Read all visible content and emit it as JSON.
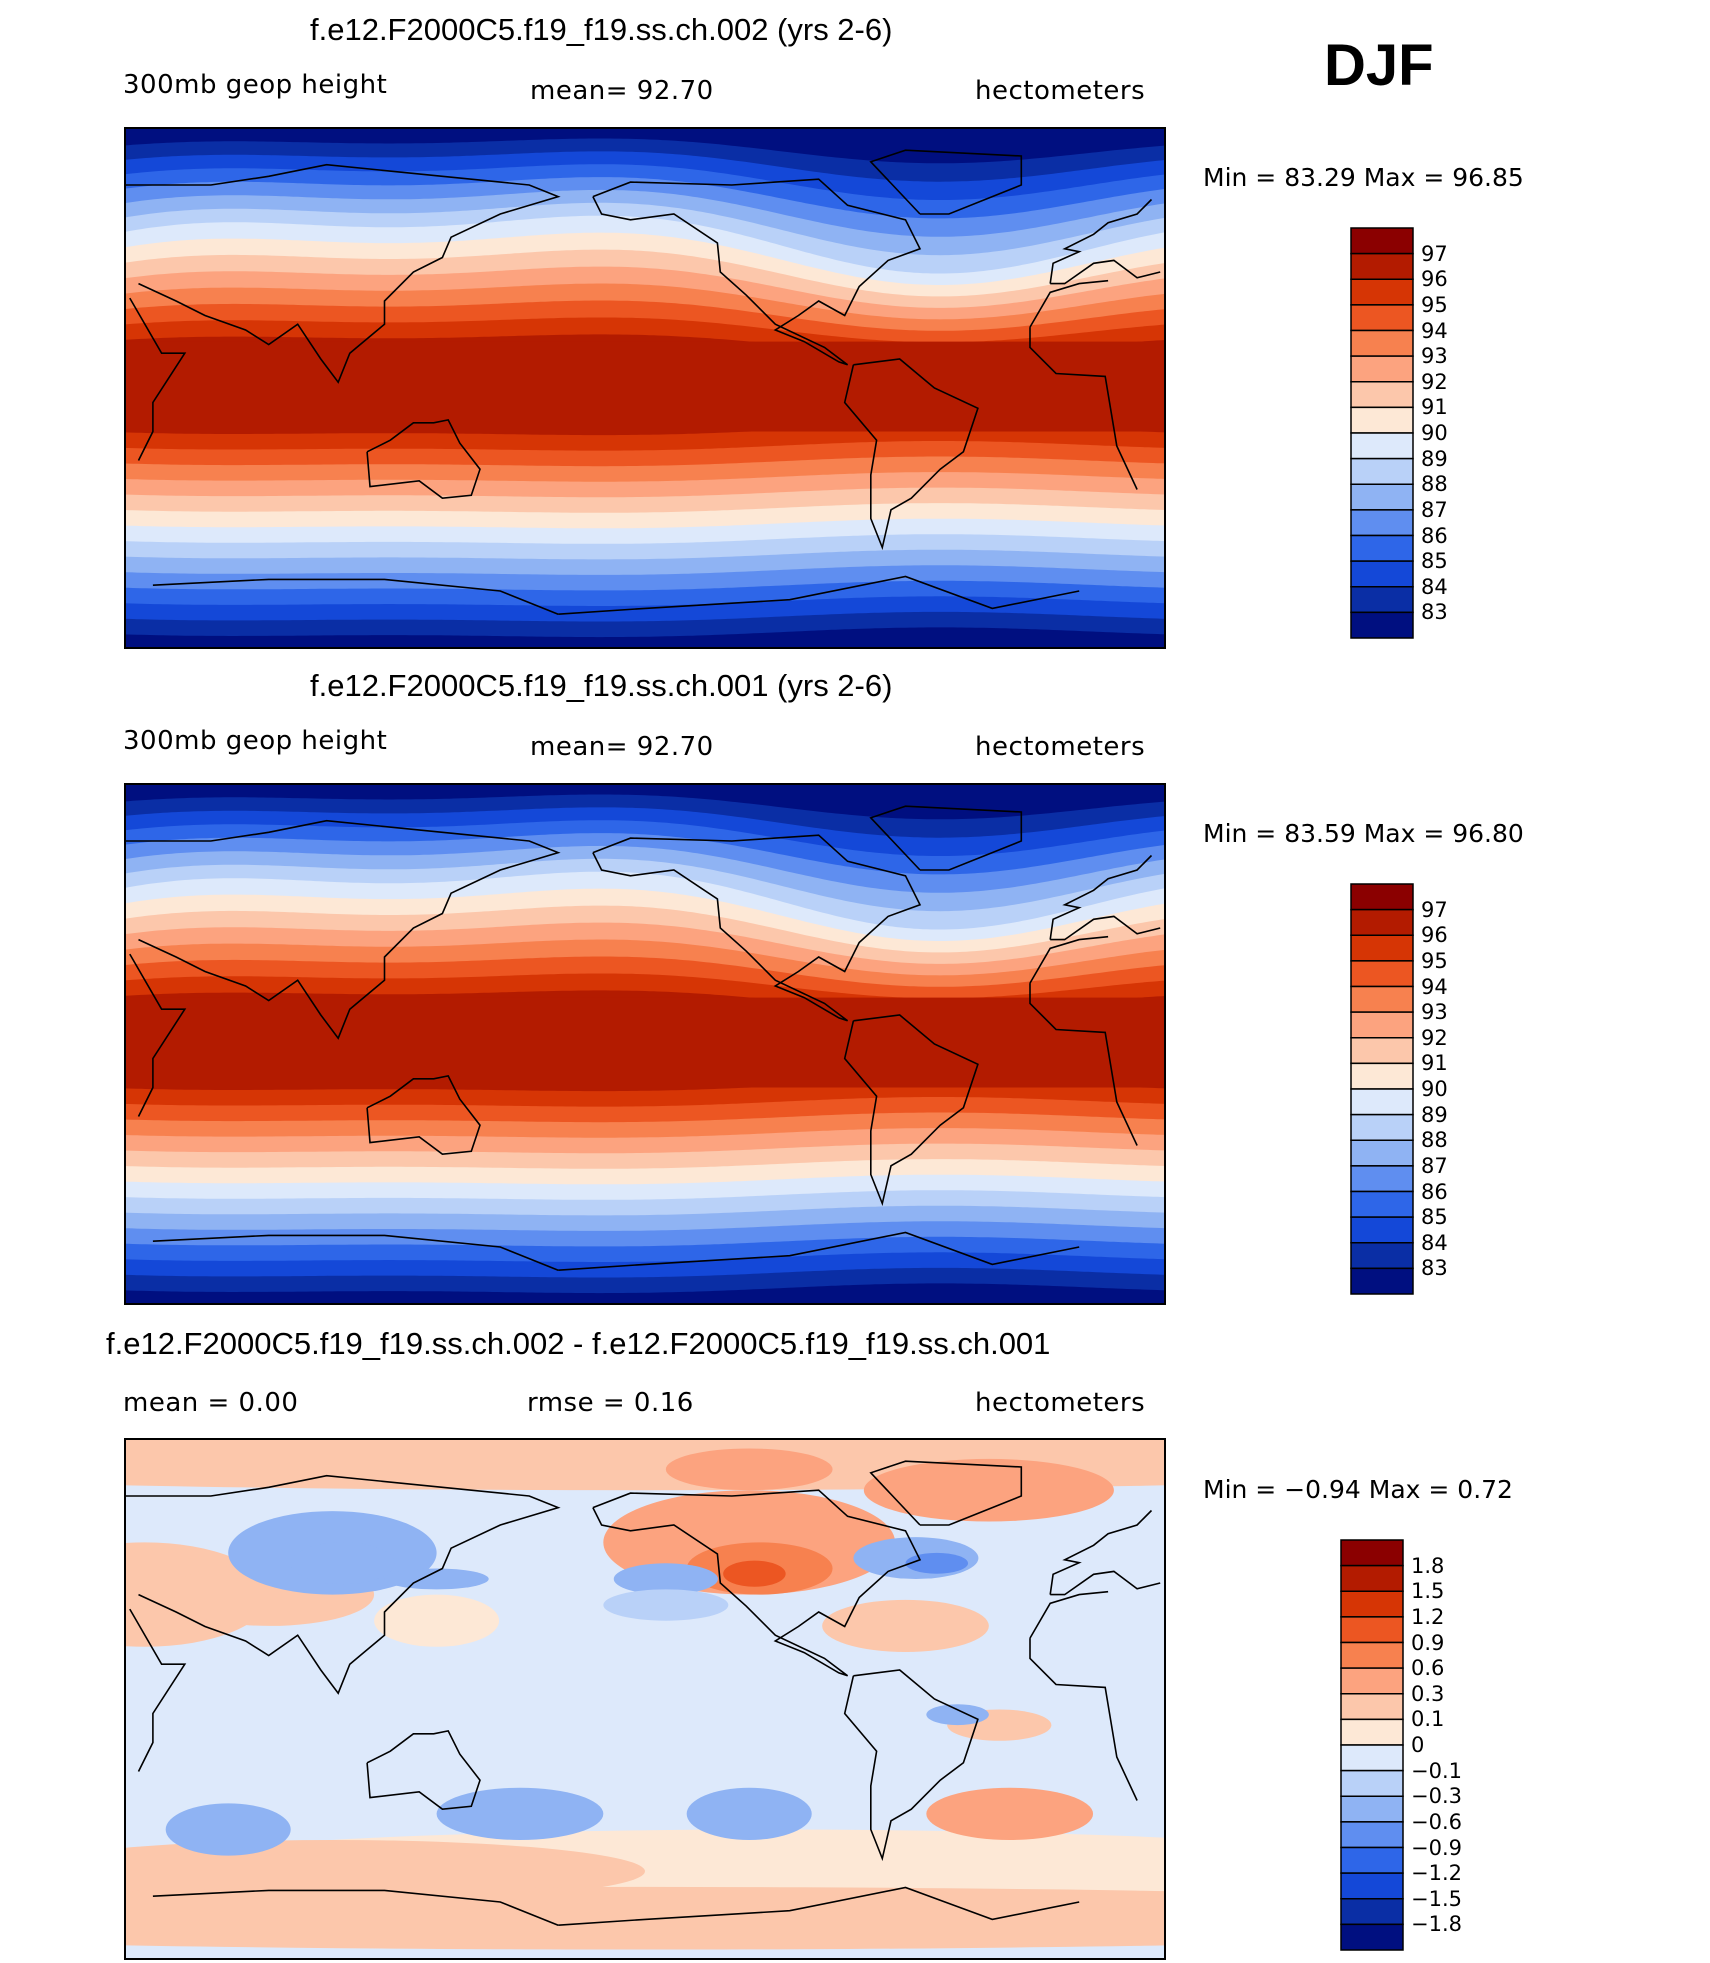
{
  "season": "DJF",
  "panels": [
    {
      "title": "f.e12.F2000C5.f19_f19.ss.ch.002 (yrs 2-6)",
      "left": "300mb geop height",
      "center": "mean=   92.70",
      "right": "hectometers",
      "minmax": "Min =   83.29  Max =   96.85",
      "colorbar": {
        "labels": [
          "97",
          "96",
          "95",
          "94",
          "93",
          "92",
          "91",
          "90",
          "89",
          "88",
          "87",
          "86",
          "85",
          "84",
          "83"
        ],
        "colors": [
          "#8b0000",
          "#b31b00",
          "#d63505",
          "#ec5622",
          "#f7814f",
          "#fca37f",
          "#fcc7ab",
          "#fde8d6",
          "#dde9fb",
          "#b9d1f8",
          "#8fb3f3",
          "#5f8ef0",
          "#2e66e8",
          "#1448d8",
          "#0a2ea5",
          "#000f80"
        ]
      },
      "map_type": "absolute"
    },
    {
      "title": "f.e12.F2000C5.f19_f19.ss.ch.001 (yrs 2-6)",
      "left": "300mb geop height",
      "center": "mean=   92.70",
      "right": "hectometers",
      "minmax": "Min =   83.59  Max =   96.80",
      "colorbar": {
        "labels": [
          "97",
          "96",
          "95",
          "94",
          "93",
          "92",
          "91",
          "90",
          "89",
          "88",
          "87",
          "86",
          "85",
          "84",
          "83"
        ],
        "colors": [
          "#8b0000",
          "#b31b00",
          "#d63505",
          "#ec5622",
          "#f7814f",
          "#fca37f",
          "#fcc7ab",
          "#fde8d6",
          "#dde9fb",
          "#b9d1f8",
          "#8fb3f3",
          "#5f8ef0",
          "#2e66e8",
          "#1448d8",
          "#0a2ea5",
          "#000f80"
        ]
      },
      "map_type": "absolute"
    },
    {
      "title": "f.e12.F2000C5.f19_f19.ss.ch.002 - f.e12.F2000C5.f19_f19.ss.ch.001",
      "left": "mean =     0.00",
      "center": "rmse =     0.16",
      "right": "hectometers",
      "minmax": "Min =   −0.94  Max =     0.72",
      "colorbar": {
        "labels": [
          "1.8",
          "1.5",
          "1.2",
          "0.9",
          "0.6",
          "0.3",
          "0.1",
          "0",
          "−0.1",
          "−0.3",
          "−0.6",
          "−0.9",
          "−1.2",
          "−1.5",
          "−1.8"
        ],
        "colors": [
          "#8b0000",
          "#b31b00",
          "#d63505",
          "#ec5622",
          "#f7814f",
          "#fca37f",
          "#fcc7ab",
          "#fde8d6",
          "#dde9fb",
          "#b9d1f8",
          "#8fb3f3",
          "#5f8ef0",
          "#2e66e8",
          "#1448d8",
          "#0a2ea5",
          "#000f80"
        ]
      },
      "map_type": "difference"
    }
  ]
}
